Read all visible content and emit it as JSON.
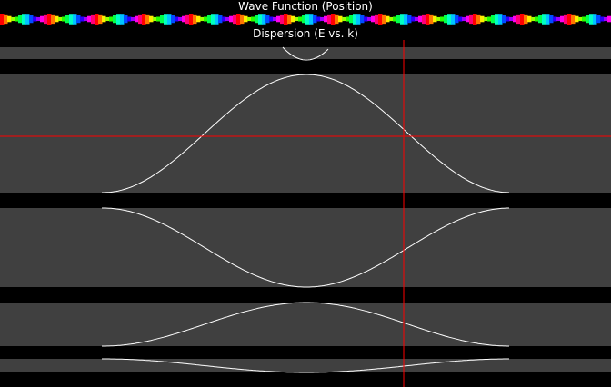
{
  "wave_panel": {
    "title": "Wave Function (Position)"
  },
  "dispersion_panel": {
    "title": "Dispersion (E vs. k)",
    "colors": {
      "band_fill": "#404040",
      "gap_fill": "#000000",
      "curve": "#ffffff",
      "cursor": "#ff0000"
    }
  }
}
